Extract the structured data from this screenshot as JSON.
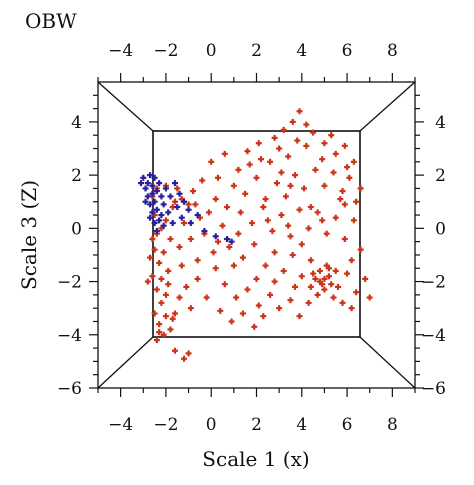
{
  "chart_data": {
    "type": "scatter",
    "title": "OBW",
    "xlabel": "Scale 1 (x)",
    "ylabel": "Scale 3 (Z)",
    "xlim": [
      -5,
      9
    ],
    "ylim": [
      -6,
      5.5
    ],
    "x_ticks": [
      -4,
      -2,
      0,
      2,
      4,
      6,
      8
    ],
    "y_ticks": [
      -6,
      -4,
      -2,
      0,
      2,
      4
    ],
    "x_tick_labels": [
      "−4",
      "−2",
      "0",
      "2",
      "4",
      "6",
      "8"
    ],
    "y_tick_labels": [
      "−6",
      "−4",
      "−2",
      "0",
      "2",
      "4"
    ],
    "grid": false,
    "series": [
      {
        "color": "#cc3318",
        "marker": "plus",
        "points": [
          [
            -2.6,
            1.2
          ],
          [
            -2.5,
            0.5
          ],
          [
            -2.4,
            -0.2
          ],
          [
            -2.5,
            -0.8
          ],
          [
            -2.3,
            -1.3
          ],
          [
            -2.6,
            -1.8
          ],
          [
            -2.4,
            -2.3
          ],
          [
            -2.2,
            -2.8
          ],
          [
            -2.5,
            -3.2
          ],
          [
            -2.3,
            -3.6
          ],
          [
            -2.1,
            -4.0
          ],
          [
            -2.4,
            -4.2
          ],
          [
            -1.8,
            -3.8
          ],
          [
            -1.6,
            -3.2
          ],
          [
            -2.0,
            -2.5
          ],
          [
            -1.9,
            -1.6
          ],
          [
            -2.1,
            -0.9
          ],
          [
            -2.0,
            0.3
          ],
          [
            -1.7,
            0.8
          ],
          [
            -1.5,
            1.5
          ],
          [
            -2.2,
            0.0
          ],
          [
            -2.6,
            -0.4
          ],
          [
            -2.7,
            -1.1
          ],
          [
            -2.8,
            -2.0
          ],
          [
            -2.2,
            -1.9
          ],
          [
            -1.8,
            -0.4
          ],
          [
            -1.4,
            -0.7
          ],
          [
            -1.2,
            0.2
          ],
          [
            -1.0,
            0.9
          ],
          [
            -0.8,
            1.4
          ],
          [
            -0.5,
            0.4
          ],
          [
            -0.3,
            -0.2
          ],
          [
            -0.1,
            0.6
          ],
          [
            0.3,
            -0.5
          ],
          [
            0.5,
            0.1
          ],
          [
            -1.3,
            -1.4
          ],
          [
            -1.1,
            -2.2
          ],
          [
            -0.6,
            -1.9
          ],
          [
            -0.2,
            -2.6
          ],
          [
            0.2,
            -1.5
          ],
          [
            -1.6,
            -4.6
          ],
          [
            -1.2,
            -4.9
          ],
          [
            -0.9,
            -3.0
          ],
          [
            -1.4,
            -2.6
          ],
          [
            -2.0,
            -3.3
          ],
          [
            0.0,
            2.5
          ],
          [
            0.6,
            2.8
          ],
          [
            1.2,
            2.2
          ],
          [
            1.6,
            2.9
          ],
          [
            2.1,
            3.2
          ],
          [
            2.6,
            2.5
          ],
          [
            3.0,
            3.0
          ],
          [
            3.4,
            2.7
          ],
          [
            3.8,
            3.3
          ],
          [
            4.2,
            3.1
          ],
          [
            4.5,
            3.6
          ],
          [
            5.0,
            3.2
          ],
          [
            5.5,
            2.8
          ],
          [
            5.9,
            3.1
          ],
          [
            6.3,
            2.5
          ],
          [
            3.6,
            4.0
          ],
          [
            3.9,
            4.4
          ],
          [
            4.2,
            3.9
          ],
          [
            3.2,
            3.7
          ],
          [
            2.8,
            3.4
          ],
          [
            1.0,
            1.6
          ],
          [
            1.5,
            1.3
          ],
          [
            2.0,
            1.9
          ],
          [
            2.4,
            1.1
          ],
          [
            2.9,
            1.7
          ],
          [
            3.3,
            1.2
          ],
          [
            3.7,
            2.0
          ],
          [
            4.1,
            1.5
          ],
          [
            4.6,
            2.2
          ],
          [
            5.0,
            1.6
          ],
          [
            5.4,
            2.1
          ],
          [
            5.8,
            1.4
          ],
          [
            6.1,
            1.9
          ],
          [
            6.4,
            1.0
          ],
          [
            1.3,
            0.6
          ],
          [
            1.8,
            0.2
          ],
          [
            2.3,
            0.8
          ],
          [
            2.7,
            -0.1
          ],
          [
            3.1,
            0.5
          ],
          [
            3.5,
            -0.3
          ],
          [
            3.9,
            0.7
          ],
          [
            4.3,
            0.0
          ],
          [
            4.7,
            0.6
          ],
          [
            5.1,
            -0.2
          ],
          [
            5.5,
            0.4
          ],
          [
            5.9,
            -0.4
          ],
          [
            6.3,
            0.3
          ],
          [
            0.8,
            -0.7
          ],
          [
            1.4,
            -1.1
          ],
          [
            1.9,
            -0.6
          ],
          [
            2.4,
            -1.4
          ],
          [
            2.8,
            -0.9
          ],
          [
            3.2,
            -1.6
          ],
          [
            3.6,
            -1.0
          ],
          [
            4.0,
            -1.8
          ],
          [
            4.4,
            -1.2
          ],
          [
            4.8,
            -2.0
          ],
          [
            5.2,
            -1.5
          ],
          [
            5.6,
            -2.2
          ],
          [
            6.0,
            -1.7
          ],
          [
            6.4,
            -2.4
          ],
          [
            0.6,
            -2.1
          ],
          [
            1.1,
            -2.6
          ],
          [
            1.6,
            -2.3
          ],
          [
            2.1,
            -2.9
          ],
          [
            2.6,
            -2.5
          ],
          [
            3.0,
            -3.0
          ],
          [
            3.5,
            -2.7
          ],
          [
            3.9,
            -3.3
          ],
          [
            4.3,
            -2.8
          ],
          [
            4.7,
            -2.5
          ],
          [
            5.0,
            -2.3
          ],
          [
            5.4,
            -2.6
          ],
          [
            5.8,
            -2.8
          ],
          [
            6.2,
            -3.0
          ],
          [
            4.5,
            -1.7
          ],
          [
            4.8,
            -1.6
          ],
          [
            5.0,
            -1.9
          ],
          [
            5.2,
            -1.8
          ],
          [
            4.6,
            -1.9
          ],
          [
            4.9,
            -2.1
          ],
          [
            5.3,
            -2.1
          ],
          [
            4.4,
            -2.2
          ],
          [
            5.1,
            -1.4
          ],
          [
            5.5,
            -1.6
          ],
          [
            0.4,
            -3.1
          ],
          [
            0.9,
            -3.5
          ],
          [
            1.4,
            -3.2
          ],
          [
            1.9,
            -3.7
          ],
          [
            2.3,
            -3.3
          ],
          [
            0.2,
            1.1
          ],
          [
            0.7,
            0.8
          ],
          [
            -0.4,
            1.8
          ],
          [
            0.3,
            1.9
          ],
          [
            1.7,
            2.4
          ],
          [
            2.2,
            2.6
          ],
          [
            4.9,
            2.6
          ],
          [
            5.3,
            3.5
          ],
          [
            6.0,
            2.3
          ],
          [
            6.6,
            1.5
          ],
          [
            6.8,
            -1.9
          ],
          [
            7.0,
            -2.6
          ],
          [
            6.6,
            -0.8
          ],
          [
            6.2,
            -1.2
          ],
          [
            4.0,
            -0.6
          ],
          [
            3.4,
            0.1
          ],
          [
            2.5,
            0.3
          ],
          [
            1.2,
            -0.2
          ],
          [
            0.1,
            -0.9
          ],
          [
            -0.6,
            -1.2
          ],
          [
            -0.9,
            -0.4
          ],
          [
            -0.7,
            0.9
          ],
          [
            -1.3,
            1.1
          ],
          [
            -1.9,
            -2.1
          ],
          [
            -2.3,
            -3.9
          ],
          [
            -1.7,
            -3.4
          ],
          [
            -1.0,
            -4.7
          ],
          [
            -2.4,
            1.5
          ],
          [
            -2.0,
            1.6
          ],
          [
            -1.6,
            1.0
          ],
          [
            3.1,
            2.1
          ],
          [
            3.5,
            1.6
          ],
          [
            4.4,
            0.8
          ],
          [
            4.9,
            0.3
          ],
          [
            5.7,
            1.1
          ],
          [
            2.0,
            -1.9
          ],
          [
            1.0,
            -1.4
          ],
          [
            3.7,
            -2.2
          ],
          [
            2.8,
            -2.0
          ],
          [
            5.9,
            0.9
          ]
        ]
      },
      {
        "color": "#2a1f9c",
        "marker": "plus",
        "points": [
          [
            -3.0,
            1.9
          ],
          [
            -2.8,
            1.7
          ],
          [
            -2.7,
            2.0
          ],
          [
            -2.9,
            1.5
          ],
          [
            -2.6,
            1.6
          ],
          [
            -2.5,
            1.9
          ],
          [
            -2.8,
            1.2
          ],
          [
            -2.6,
            1.3
          ],
          [
            -2.4,
            1.4
          ],
          [
            -2.7,
            0.9
          ],
          [
            -2.5,
            1.0
          ],
          [
            -2.3,
            1.7
          ],
          [
            -2.2,
            1.2
          ],
          [
            -2.6,
            0.6
          ],
          [
            -2.4,
            0.7
          ],
          [
            -2.3,
            0.3
          ],
          [
            -2.5,
            0.2
          ],
          [
            -2.7,
            0.4
          ],
          [
            -2.1,
            0.9
          ],
          [
            -2.0,
            1.5
          ],
          [
            -1.8,
            1.2
          ],
          [
            -1.6,
            1.7
          ],
          [
            -1.4,
            1.3
          ],
          [
            -1.5,
            0.8
          ],
          [
            -1.2,
            1.0
          ],
          [
            -1.0,
            0.7
          ],
          [
            -1.3,
            0.4
          ],
          [
            -0.9,
            0.2
          ],
          [
            -0.6,
            0.5
          ],
          [
            -0.3,
            -0.1
          ],
          [
            0.2,
            -0.3
          ],
          [
            0.7,
            -0.4
          ],
          [
            0.9,
            -0.5
          ],
          [
            -2.9,
            1.0
          ],
          [
            -3.1,
            1.7
          ],
          [
            -2.2,
            0.5
          ],
          [
            -1.9,
            0.6
          ],
          [
            -1.7,
            0.2
          ],
          [
            -2.4,
            -0.1
          ],
          [
            -2.1,
            0.1
          ]
        ]
      }
    ]
  }
}
